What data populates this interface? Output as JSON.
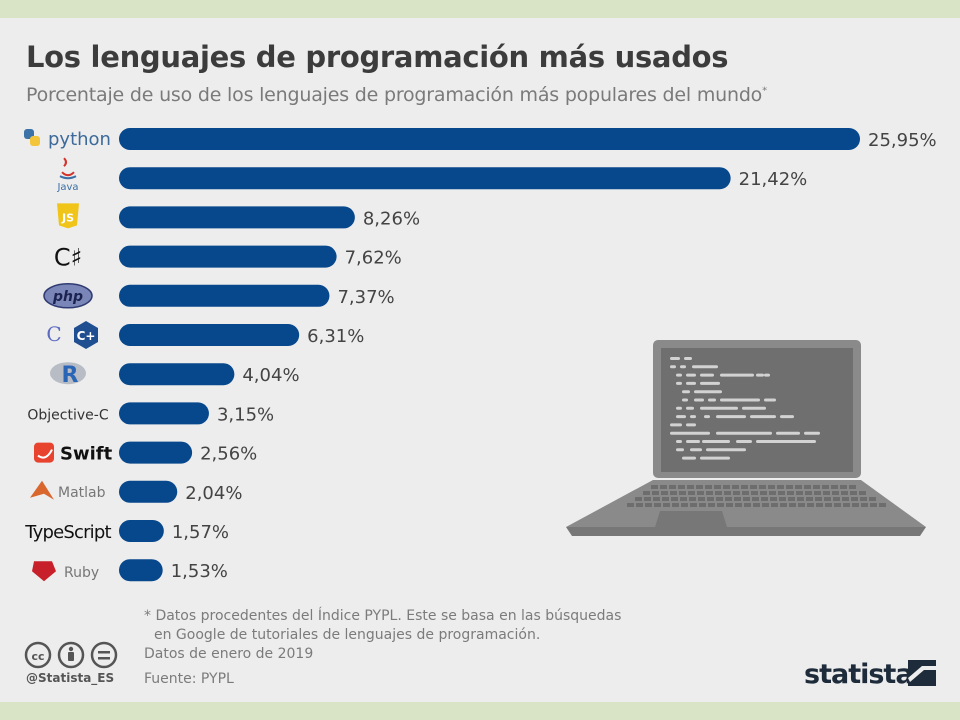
{
  "title": "Los lenguajes de programación más usados",
  "subtitle": "Porcentaje de uso de los lenguajes de programación más populares del mundo",
  "subtitle_marker": "*",
  "footnote": {
    "line1": "* Datos procedentes del Índice PYPL. Este se basa en las búsquedas",
    "line2": "en Google de tutoriales de lenguajes de programación."
  },
  "dates_note": "Datos de enero de 2019",
  "source": "Fuente: PYPL",
  "handle": "@Statista_ES",
  "brand": "statista",
  "colors": {
    "bar": "#07478c",
    "value_text": "#444444",
    "laptop": "#8a8a8a",
    "laptop_screen": "#6f6f6f"
  },
  "logo_texts": {
    "python": "python",
    "java": "Java",
    "javascript": "JS",
    "php": "php",
    "r": "R",
    "c": "C",
    "cpp": "C+",
    "swift": "Swift"
  },
  "chart_data": {
    "type": "bar",
    "orientation": "horizontal",
    "unit": "%",
    "categories": [
      "Python",
      "Java",
      "JavaScript",
      "C#",
      "PHP",
      "C/C++",
      "R",
      "Objective-C",
      "Swift",
      "Matlab",
      "TypeScript",
      "Ruby"
    ],
    "category_labels": [
      "python",
      "Java",
      "JavaScript",
      "C♯",
      "php",
      "C/C++",
      "R",
      "Objective-C",
      "Swift",
      "Matlab",
      "TypeScript",
      "Ruby"
    ],
    "values": [
      25.95,
      21.42,
      8.26,
      7.62,
      7.37,
      6.31,
      4.04,
      3.15,
      2.56,
      2.04,
      1.57,
      1.53
    ],
    "value_labels": [
      "25,95%",
      "21,42%",
      "8,26%",
      "7,62%",
      "7,37%",
      "6,31%",
      "4,04%",
      "3,15%",
      "2,56%",
      "2,04%",
      "1,57%",
      "1,53%"
    ],
    "xlim": [
      0,
      25.95
    ],
    "grid": false,
    "legend": "none"
  }
}
